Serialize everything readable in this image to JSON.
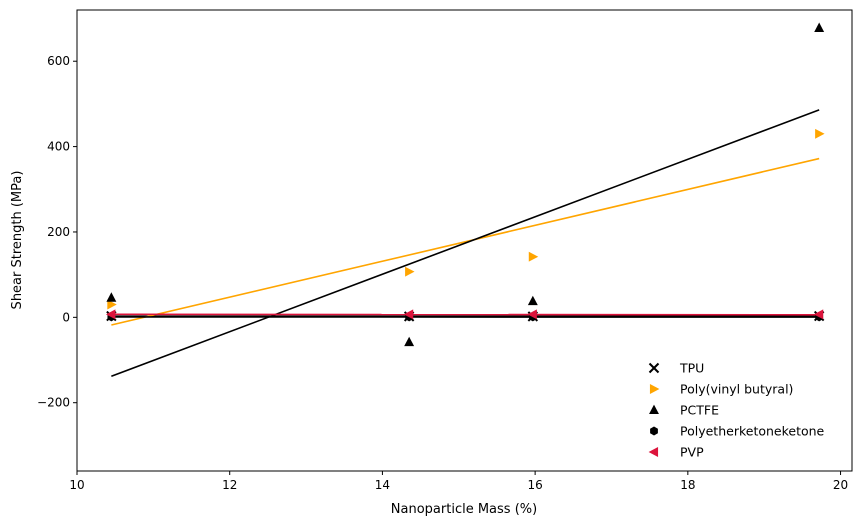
{
  "chart_data": {
    "type": "scatter",
    "title": "",
    "xlabel": "Nanoparticle Mass (%)",
    "ylabel": "Shear Strength (MPa)",
    "xlim": [
      10.0,
      20.15
    ],
    "ylim": [
      -360,
      720
    ],
    "xticks": [
      10,
      12,
      14,
      16,
      18,
      20
    ],
    "yticks": [
      -200,
      0,
      200,
      400,
      600
    ],
    "xtick_labels": [
      "10",
      "12",
      "14",
      "16",
      "18",
      "20"
    ],
    "ytick_labels": [
      "−200",
      "0",
      "200",
      "400",
      "600"
    ],
    "grid": false,
    "legend_position": "lower-right",
    "series": [
      {
        "name": "TPU",
        "color": "#000000",
        "marker": "x",
        "x": [
          10.45,
          14.35,
          15.97,
          19.72
        ],
        "y": [
          3,
          2,
          2,
          3
        ],
        "fit": [
          [
            10.45,
            2.8
          ],
          [
            19.72,
            2.5
          ]
        ]
      },
      {
        "name": "Poly(vinyl butyral)",
        "color": "#FFA500",
        "marker": "triangle-right",
        "x": [
          10.45,
          14.35,
          15.97,
          19.72
        ],
        "y": [
          30,
          107,
          142,
          430
        ],
        "fit": [
          [
            10.45,
            -18
          ],
          [
            19.72,
            372
          ]
        ]
      },
      {
        "name": "PCTFE",
        "color": "#000000",
        "marker": "triangle-up",
        "x": [
          10.45,
          14.35,
          15.97,
          19.72
        ],
        "y": [
          46,
          -58,
          38,
          678
        ],
        "fit": [
          [
            10.45,
            -138
          ],
          [
            19.72,
            486
          ]
        ]
      },
      {
        "name": "Polyetherketoneketone",
        "color": "#000000",
        "marker": "hexagon",
        "x": [
          10.45,
          14.35,
          15.97,
          19.72
        ],
        "y": [
          1,
          1,
          1,
          1
        ],
        "fit": [
          [
            10.45,
            1
          ],
          [
            19.72,
            0.5
          ]
        ]
      },
      {
        "name": "PVP",
        "color": "#DC143C",
        "marker": "triangle-left",
        "x": [
          10.45,
          14.35,
          15.97,
          19.72
        ],
        "y": [
          7,
          7,
          7,
          7
        ],
        "fit": [
          [
            10.45,
            7
          ],
          [
            19.72,
            6
          ]
        ]
      }
    ]
  }
}
